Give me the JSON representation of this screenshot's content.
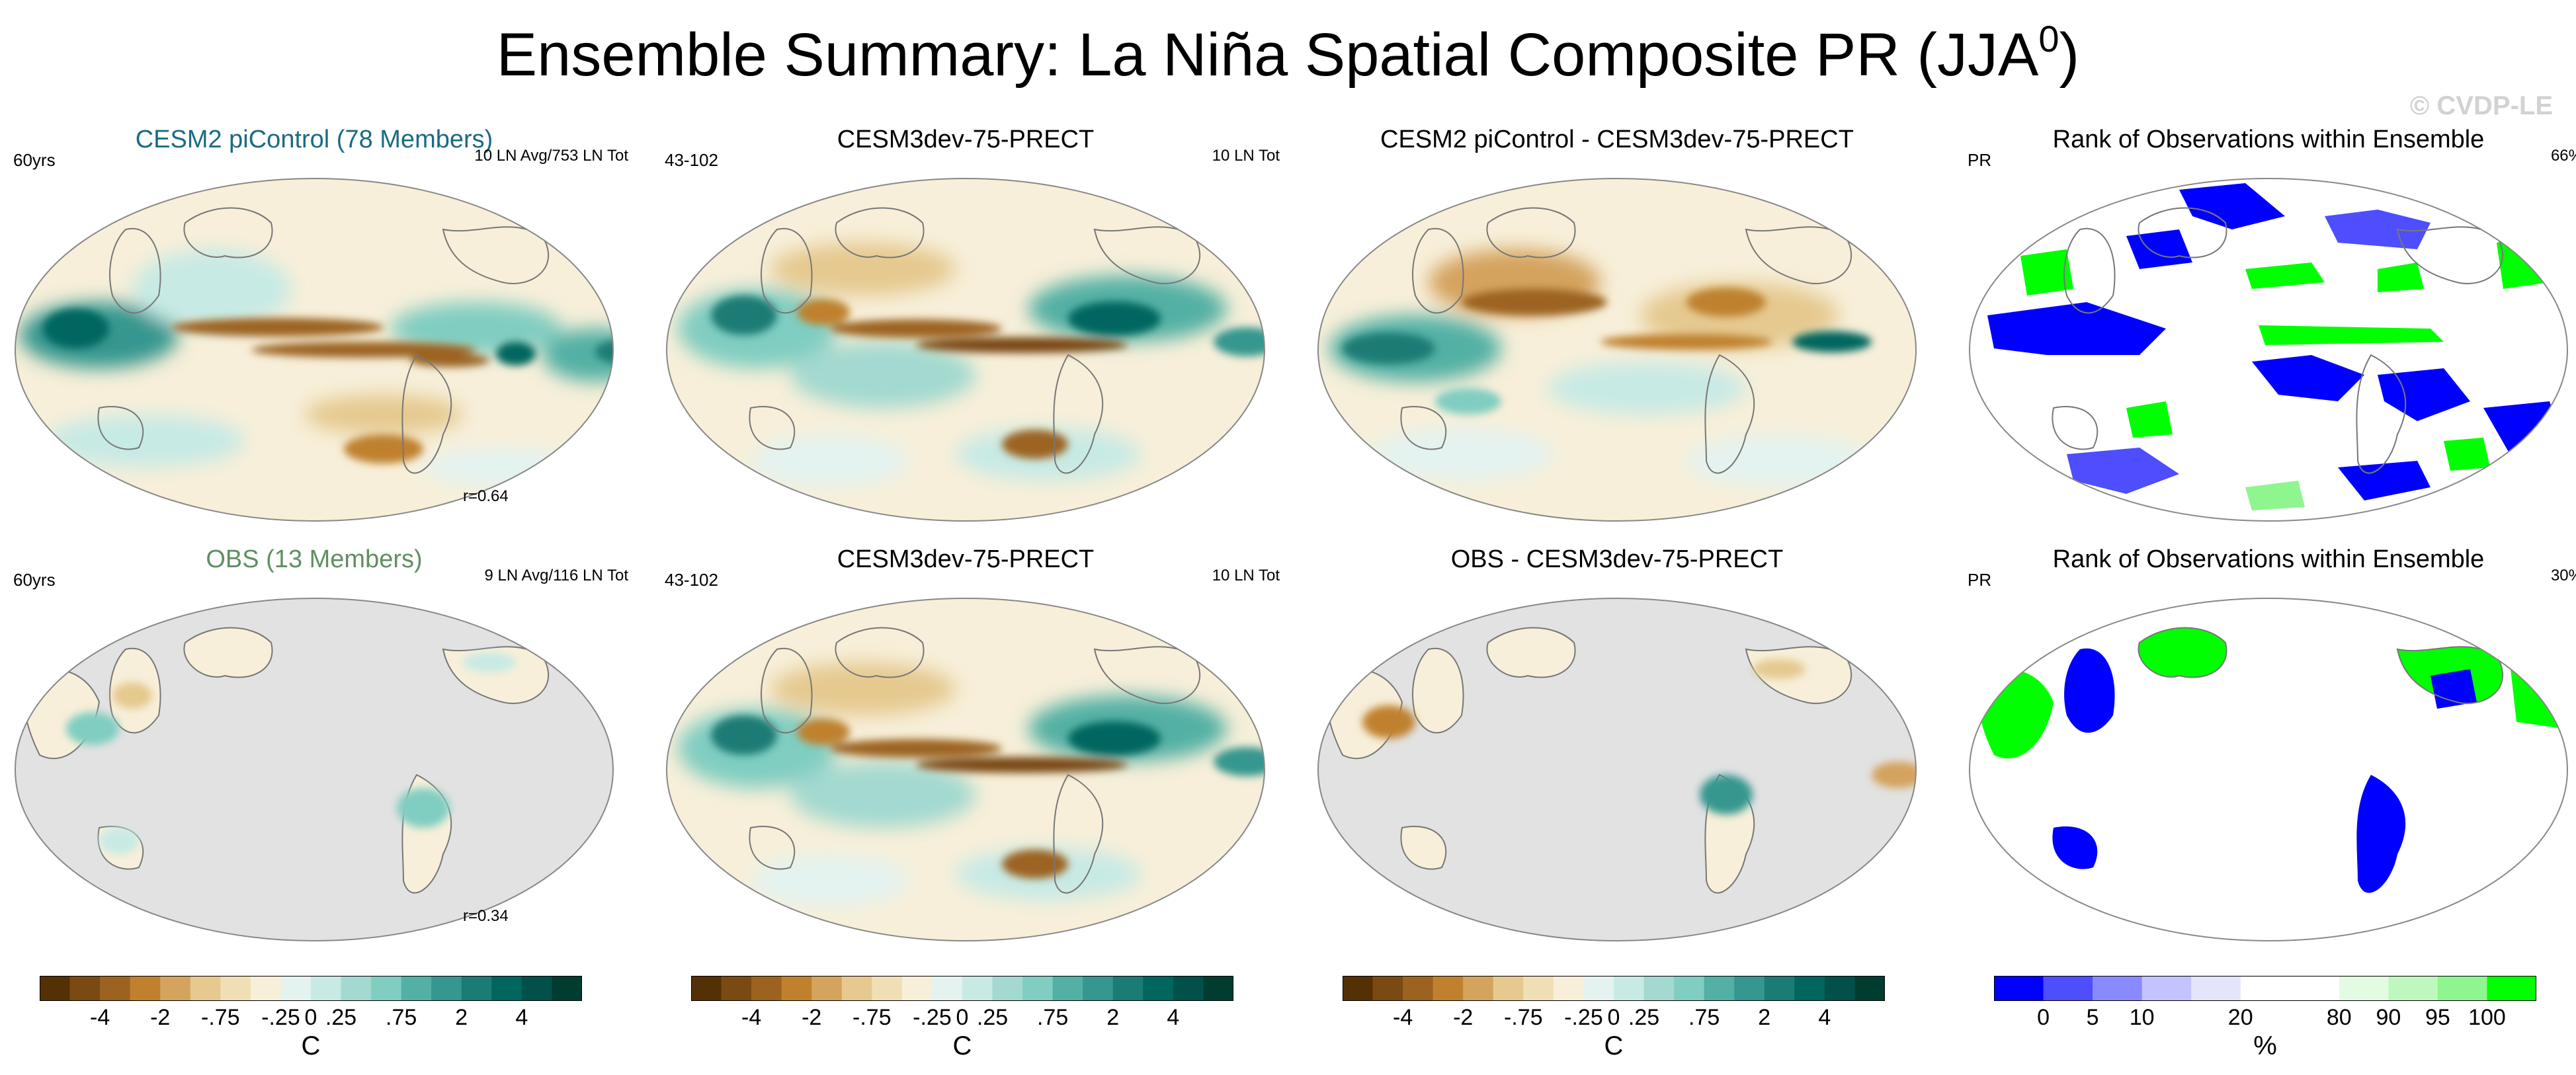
{
  "title": {
    "main": "Ensemble Summary: La Niña Spatial Composite PR (JJA",
    "sup": "0",
    "close": ")"
  },
  "watermark": "© CVDP-LE",
  "panels": [
    {
      "title": "CESM2 piControl (78 Members)",
      "title_color": "#1a6b84",
      "left": "60yrs",
      "right": "10 LN Avg/753 LN Tot",
      "corr": "r=0.64"
    },
    {
      "title": "CESM3dev-75-PRECT",
      "title_color": "#000000",
      "left": "43-102",
      "right": "10 LN Tot",
      "corr": ""
    },
    {
      "title": "CESM2 piControl - CESM3dev-75-PRECT",
      "title_color": "#000000",
      "left": "",
      "right": "",
      "corr": ""
    },
    {
      "title": "Rank of Observations within Ensemble",
      "title_color": "#000000",
      "left": "PR",
      "right": "66%",
      "corr": ""
    },
    {
      "title": "OBS (13 Members)",
      "title_color": "#5f8f63",
      "left": "60yrs",
      "right": "9 LN Avg/116 LN Tot",
      "corr": "r=0.34"
    },
    {
      "title": "CESM3dev-75-PRECT",
      "title_color": "#000000",
      "left": "43-102",
      "right": "10 LN Tot",
      "corr": ""
    },
    {
      "title": "OBS - CESM3dev-75-PRECT",
      "title_color": "#000000",
      "left": "",
      "right": "",
      "corr": ""
    },
    {
      "title": "Rank of Observations within Ensemble",
      "title_color": "#000000",
      "left": "PR",
      "right": "30%",
      "corr": ""
    }
  ],
  "colorbars": {
    "diverging": {
      "unit": "C",
      "colors": [
        "#543005",
        "#7a4a12",
        "#9c6320",
        "#bf812d",
        "#d4a35d",
        "#e5c98f",
        "#f0dfb4",
        "#f7efd9",
        "#e4f3f0",
        "#c7eae5",
        "#a3d9d0",
        "#80cdc1",
        "#52b0a4",
        "#35978f",
        "#1a7c74",
        "#01665e",
        "#01514a",
        "#003c30"
      ],
      "ticks": [
        "-4",
        "-2",
        "-.75",
        "-.25",
        "0",
        ".25",
        ".75",
        "2",
        "4"
      ]
    },
    "rank": {
      "unit": "%",
      "colors": [
        "#0000ff",
        "#4e4eff",
        "#8a8aff",
        "#c3c3ff",
        "#e4e4fb",
        "#ffffff",
        "#ffffff",
        "#e3fbe3",
        "#bff8bf",
        "#8ff58f",
        "#00ff00"
      ],
      "ticks": [
        "0",
        "5",
        "10",
        "20",
        "80",
        "90",
        "95",
        "100"
      ]
    }
  },
  "chart_data": [
    {
      "type": "heatmap",
      "title": "CESM2 piControl (78 Members)",
      "variable": "PR",
      "season": "JJA0",
      "units": "C",
      "annotations": [
        "60yrs",
        "10 LN Avg/753 LN Tot",
        "r=0.64"
      ],
      "colorbar_ticks": [
        "-4",
        "-2",
        "-.75",
        "-.25",
        "0",
        ".25",
        ".75",
        "2",
        "4"
      ]
    },
    {
      "type": "heatmap",
      "title": "CESM3dev-75-PRECT",
      "variable": "PR",
      "units": "C",
      "annotations": [
        "43-102",
        "10 LN Tot"
      ]
    },
    {
      "type": "heatmap",
      "title": "CESM2 piControl - CESM3dev-75-PRECT",
      "variable": "PR",
      "units": "C",
      "annotations": []
    },
    {
      "type": "heatmap",
      "title": "Rank of Observations within Ensemble",
      "variable": "PR",
      "units": "%",
      "annotations": [
        "PR",
        "66%"
      ],
      "colorbar_ticks": [
        "0",
        "5",
        "10",
        "20",
        "80",
        "90",
        "95",
        "100"
      ]
    },
    {
      "type": "heatmap",
      "title": "OBS (13 Members)",
      "variable": "PR",
      "units": "C",
      "annotations": [
        "60yrs",
        "9 LN Avg/116 LN Tot",
        "r=0.34"
      ]
    },
    {
      "type": "heatmap",
      "title": "CESM3dev-75-PRECT",
      "variable": "PR",
      "units": "C",
      "annotations": [
        "43-102",
        "10 LN Tot"
      ]
    },
    {
      "type": "heatmap",
      "title": "OBS - CESM3dev-75-PRECT",
      "variable": "PR",
      "units": "C",
      "annotations": []
    },
    {
      "type": "heatmap",
      "title": "Rank of Observations within Ensemble",
      "variable": "PR",
      "units": "%",
      "annotations": [
        "PR",
        "30%"
      ]
    }
  ]
}
